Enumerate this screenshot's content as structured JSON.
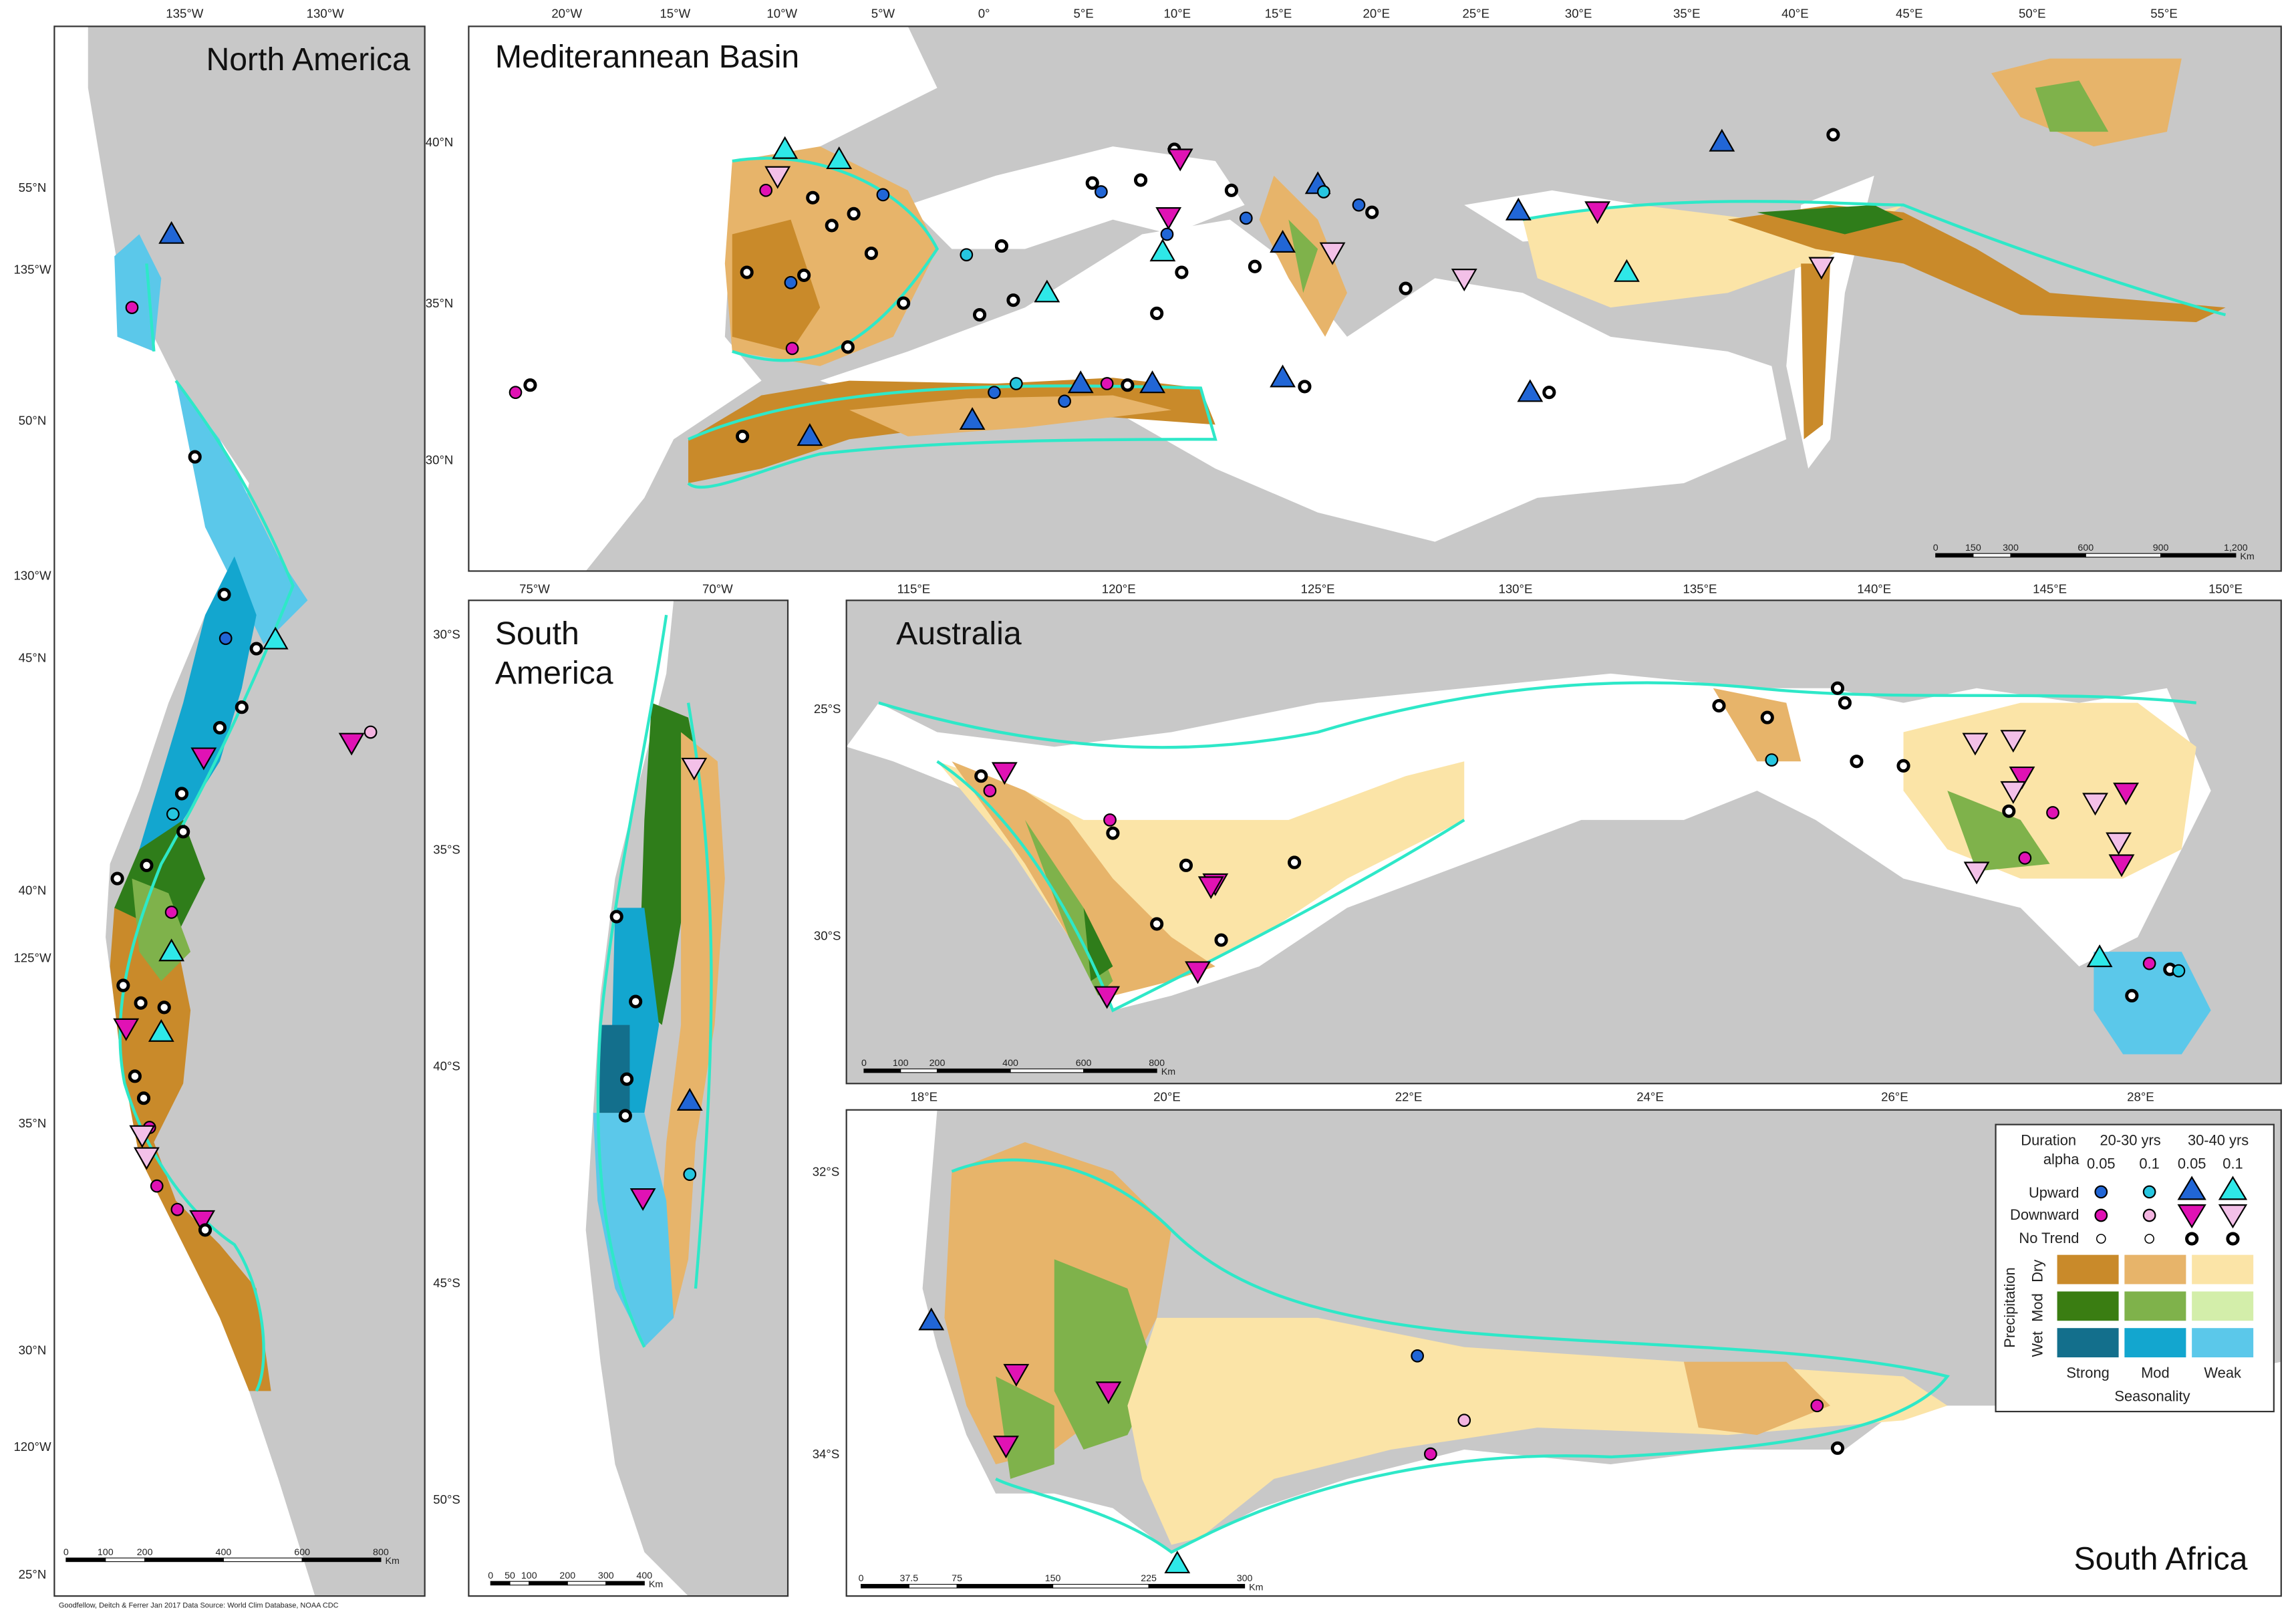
{
  "panels": [
    {
      "title": [
        "North America"
      ],
      "top_labels": [
        "135°W",
        "130°W"
      ],
      "left_labels": [
        "55°N",
        "50°N",
        "45°N",
        "40°N",
        "35°N",
        "30°N",
        "25°N"
      ],
      "side_labels": [
        "135°W",
        "130°W",
        "125°W",
        "120°W"
      ],
      "scale_labels": [
        "0",
        "100",
        "200",
        "400",
        "600",
        "800"
      ],
      "scale_unit": "Km"
    },
    {
      "title": [
        "Mediterannean Basin"
      ],
      "top_labels": [
        "20°W",
        "15°W",
        "10°W",
        "5°W",
        "0°",
        "5°E",
        "10°E",
        "15°E",
        "20°E",
        "25°E",
        "30°E",
        "35°E",
        "40°E",
        "45°E",
        "50°E",
        "55°E"
      ],
      "left_labels": [
        "40°N",
        "35°N",
        "30°N"
      ],
      "scale_labels": [
        "0",
        "150",
        "300",
        "600",
        "900",
        "1,200"
      ],
      "scale_unit": "Km"
    },
    {
      "title": [
        "South",
        "America"
      ],
      "top_labels": [
        "75°W",
        "70°W"
      ],
      "left_labels": [
        "30°S",
        "35°S",
        "40°S",
        "45°S",
        "50°S"
      ],
      "scale_labels": [
        "0",
        "50",
        "100",
        "200",
        "300",
        "400"
      ],
      "scale_unit": "Km"
    },
    {
      "title": [
        "Australia"
      ],
      "top_labels": [
        "115°E",
        "120°E",
        "125°E",
        "130°E",
        "135°E",
        "140°E",
        "145°E",
        "150°E"
      ],
      "left_labels": [
        "25°S",
        "30°S"
      ],
      "scale_labels": [
        "0",
        "100",
        "200",
        "400",
        "600",
        "800"
      ],
      "scale_unit": "Km"
    },
    {
      "title": [
        "South Africa"
      ],
      "top_labels": [
        "18°E",
        "20°E",
        "22°E",
        "24°E",
        "26°E",
        "28°E"
      ],
      "left_labels": [
        "32°S",
        "34°S"
      ],
      "scale_labels": [
        "0",
        "37.5",
        "75",
        "150",
        "225",
        "300"
      ],
      "scale_unit": "Km"
    }
  ],
  "legend": {
    "duration": "Duration",
    "alpha": "alpha",
    "groups": [
      "20-30 yrs",
      "30-40 yrs"
    ],
    "alphas": [
      "0.05",
      "0.1",
      "0.05",
      "0.1"
    ],
    "rows": [
      "Upward",
      "Downward",
      "No Trend"
    ],
    "precipitation": "Precipitation",
    "precip_levels": [
      "Dry",
      "Mod",
      "Wet"
    ],
    "seasonality_levels": [
      "Strong",
      "Mod",
      "Weak"
    ],
    "seasonality": "Seasonality"
  },
  "credit": "Goodfellow, Deitch & Ferrer  Jan 2017 Data Source: World Clim Database, NOAA CDC"
}
